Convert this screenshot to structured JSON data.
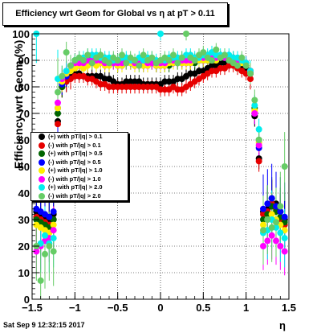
{
  "title": "Efficiency wrt Geom for Global vs   η at pT > 0.11",
  "footer": "Sat Sep  9 12:32:15 2017",
  "chart_data": {
    "type": "scatter",
    "title": "Efficiency wrt Geom for Global vs   η at pT > 0.11",
    "xlabel": "η",
    "ylabel": "Efficiency wrt Geom (%)",
    "xlim": [
      -1.5,
      1.5
    ],
    "ylim": [
      0,
      100
    ],
    "x_ticks": [
      "−1.5",
      "−1",
      "−0.5",
      "0",
      "0.5",
      "1",
      "1.5"
    ],
    "y_ticks": [
      "0",
      "10",
      "20",
      "30",
      "40",
      "50",
      "60",
      "70",
      "80",
      "90",
      "100"
    ],
    "grid": true,
    "legend_position": "left-center",
    "series": [
      {
        "name": "(+) with pT/|q| > 0.1",
        "color": "#000000",
        "x": [
          -1.45,
          -1.4,
          -1.35,
          -1.3,
          -1.25,
          -1.2,
          -1.15,
          -1.1,
          -1.05,
          -1.0,
          -0.95,
          -0.9,
          -0.85,
          -0.8,
          -0.75,
          -0.7,
          -0.65,
          -0.6,
          -0.55,
          -0.5,
          -0.45,
          -0.4,
          -0.35,
          -0.3,
          -0.25,
          -0.2,
          -0.15,
          -0.1,
          -0.05,
          0.0,
          0.05,
          0.1,
          0.15,
          0.2,
          0.25,
          0.3,
          0.35,
          0.4,
          0.45,
          0.5,
          0.55,
          0.6,
          0.65,
          0.7,
          0.75,
          0.8,
          0.85,
          0.9,
          0.95,
          1.0,
          1.05,
          1.1,
          1.15,
          1.2,
          1.25,
          1.3,
          1.35,
          1.4,
          1.45
        ],
        "y": [
          33,
          32,
          31,
          30,
          32,
          67,
          80,
          82,
          84,
          85,
          85,
          84,
          84,
          84,
          84,
          84,
          83,
          83,
          82,
          81,
          81,
          82,
          82,
          82,
          82,
          81,
          81,
          81,
          81,
          81,
          82,
          82,
          82,
          83,
          83,
          84,
          85,
          85,
          86,
          86,
          87,
          88,
          88,
          89,
          89,
          90,
          89,
          89,
          88,
          87,
          85,
          69,
          53,
          33,
          34,
          38,
          36,
          33,
          30
        ]
      },
      {
        "name": "(-) with pT/|q| > 0.1",
        "color": "#e60000",
        "x": [
          -1.45,
          -1.4,
          -1.35,
          -1.3,
          -1.25,
          -1.2,
          -1.15,
          -1.1,
          -1.05,
          -1.0,
          -0.95,
          -0.9,
          -0.85,
          -0.8,
          -0.75,
          -0.7,
          -0.65,
          -0.6,
          -0.55,
          -0.5,
          -0.45,
          -0.4,
          -0.35,
          -0.3,
          -0.25,
          -0.2,
          -0.15,
          -0.1,
          -0.05,
          0.0,
          0.05,
          0.1,
          0.15,
          0.2,
          0.25,
          0.3,
          0.35,
          0.4,
          0.45,
          0.5,
          0.55,
          0.6,
          0.65,
          0.7,
          0.75,
          0.8,
          0.85,
          0.9,
          0.95,
          1.0,
          1.05,
          1.1,
          1.15,
          1.2,
          1.25,
          1.3,
          1.35,
          1.4,
          1.45
        ],
        "y": [
          31,
          30,
          29,
          28,
          30,
          66,
          80,
          82,
          83,
          84,
          84,
          84,
          83,
          83,
          82,
          81,
          81,
          80,
          80,
          80,
          80,
          80,
          80,
          80,
          80,
          80,
          80,
          80,
          80,
          79,
          79,
          79,
          80,
          79,
          79,
          80,
          81,
          82,
          83,
          84,
          85,
          86,
          86,
          87,
          87,
          88,
          88,
          87,
          86,
          85,
          83,
          70,
          52,
          32,
          33,
          36,
          34,
          30,
          28
        ]
      },
      {
        "name": "(+) with pT/|q| > 0.5",
        "color": "#006400",
        "x": [
          -1.45,
          -1.4,
          -1.35,
          -1.3,
          -1.25,
          -1.2,
          -1.15,
          -1.1,
          -1.05,
          -1.0,
          -0.95,
          -0.9,
          -0.85,
          -0.8,
          -0.75,
          -0.7,
          -0.65,
          -0.6,
          -0.55,
          -0.5,
          -0.45,
          -0.4,
          -0.35,
          -0.3,
          -0.25,
          -0.2,
          -0.15,
          -0.1,
          -0.05,
          0.0,
          0.05,
          0.1,
          0.15,
          0.2,
          0.25,
          0.3,
          0.35,
          0.4,
          0.45,
          0.5,
          0.55,
          0.6,
          0.65,
          0.7,
          0.75,
          0.8,
          0.85,
          0.9,
          0.95,
          1.0,
          1.05,
          1.1,
          1.15,
          1.2,
          1.25,
          1.3,
          1.35,
          1.4,
          1.45
        ],
        "y": [
          30,
          29,
          28,
          27,
          30,
          70,
          80,
          84,
          86,
          88,
          88,
          89,
          89,
          89,
          89,
          90,
          89,
          89,
          89,
          88,
          88,
          89,
          89,
          88,
          89,
          89,
          89,
          89,
          88,
          88,
          88,
          88,
          89,
          89,
          89,
          89,
          89,
          89,
          90,
          90,
          90,
          90,
          91,
          91,
          91,
          91,
          91,
          90,
          89,
          88,
          86,
          72,
          60,
          30,
          32,
          35,
          33,
          31,
          29
        ]
      },
      {
        "name": "(-) with pT/|q| > 0.5",
        "color": "#0000ff",
        "x": [
          -1.45,
          -1.4,
          -1.35,
          -1.3,
          -1.25,
          -1.2,
          -1.15,
          -1.1,
          -1.05,
          -1.0,
          -0.95,
          -0.9,
          -0.85,
          -0.8,
          -0.75,
          -0.7,
          -0.65,
          -0.6,
          -0.55,
          -0.5,
          -0.45,
          -0.4,
          -0.35,
          -0.3,
          -0.25,
          -0.2,
          -0.15,
          -0.1,
          -0.05,
          0.0,
          0.05,
          0.1,
          0.15,
          0.2,
          0.25,
          0.3,
          0.35,
          0.4,
          0.45,
          0.5,
          0.55,
          0.6,
          0.65,
          0.7,
          0.75,
          0.8,
          0.85,
          0.9,
          0.95,
          1.0,
          1.05,
          1.1,
          1.15,
          1.2,
          1.25,
          1.3,
          1.35,
          1.4,
          1.45
        ],
        "y": [
          34,
          33,
          32,
          31,
          33,
          72,
          81,
          84,
          86,
          88,
          89,
          90,
          90,
          91,
          91,
          91,
          90,
          90,
          90,
          89,
          89,
          89,
          89,
          89,
          89,
          88,
          88,
          89,
          88,
          88,
          89,
          89,
          89,
          89,
          90,
          90,
          90,
          90,
          90,
          90,
          90,
          91,
          91,
          91,
          91,
          90,
          90,
          90,
          89,
          88,
          86,
          70,
          57,
          34,
          36,
          38,
          35,
          33,
          31
        ]
      },
      {
        "name": "(+) with pT/|q| > 1.0",
        "color": "#ffee00",
        "x": [
          -1.45,
          -1.4,
          -1.35,
          -1.3,
          -1.25,
          -1.2,
          -1.15,
          -1.1,
          -1.05,
          -1.0,
          -0.95,
          -0.9,
          -0.85,
          -0.8,
          -0.75,
          -0.7,
          -0.65,
          -0.6,
          -0.55,
          -0.5,
          -0.45,
          -0.4,
          -0.35,
          -0.3,
          -0.25,
          -0.2,
          -0.15,
          -0.1,
          -0.05,
          0.0,
          0.05,
          0.1,
          0.15,
          0.2,
          0.25,
          0.3,
          0.35,
          0.4,
          0.45,
          0.5,
          0.55,
          0.6,
          0.65,
          0.7,
          0.75,
          0.8,
          0.85,
          0.9,
          0.95,
          1.0,
          1.05,
          1.1,
          1.15,
          1.2,
          1.25,
          1.3,
          1.35,
          1.4,
          1.45
        ],
        "y": [
          28,
          27,
          26,
          25,
          28,
          72,
          82,
          85,
          86,
          87,
          88,
          87,
          88,
          89,
          88,
          89,
          88,
          88,
          89,
          88,
          88,
          89,
          89,
          88,
          88,
          88,
          88,
          89,
          88,
          88,
          88,
          89,
          89,
          89,
          89,
          89,
          89,
          90,
          90,
          90,
          90,
          90,
          90,
          91,
          91,
          91,
          90,
          90,
          89,
          88,
          86,
          71,
          59,
          28,
          30,
          32,
          30,
          28,
          26
        ]
      },
      {
        "name": "(-) with pT/|q| > 1.0",
        "color": "#ff00ff",
        "x": [
          -1.45,
          -1.4,
          -1.35,
          -1.3,
          -1.25,
          -1.2,
          -1.15,
          -1.1,
          -1.05,
          -1.0,
          -0.95,
          -0.9,
          -0.85,
          -0.8,
          -0.75,
          -0.7,
          -0.65,
          -0.6,
          -0.55,
          -0.5,
          -0.45,
          -0.4,
          -0.35,
          -0.3,
          -0.25,
          -0.2,
          -0.15,
          -0.1,
          -0.05,
          0.0,
          0.05,
          0.1,
          0.15,
          0.2,
          0.25,
          0.3,
          0.35,
          0.4,
          0.45,
          0.5,
          0.55,
          0.6,
          0.65,
          0.7,
          0.75,
          0.8,
          0.85,
          0.9,
          0.95,
          1.0,
          1.05,
          1.1,
          1.15,
          1.2,
          1.25,
          1.3,
          1.35,
          1.4,
          1.45
        ],
        "y": [
          18,
          20,
          22,
          23,
          26,
          74,
          83,
          86,
          88,
          89,
          89,
          89,
          90,
          90,
          90,
          90,
          89,
          89,
          89,
          89,
          89,
          90,
          90,
          89,
          89,
          90,
          89,
          89,
          89,
          89,
          89,
          90,
          90,
          90,
          90,
          90,
          90,
          90,
          91,
          91,
          91,
          91,
          91,
          91,
          91,
          91,
          90,
          90,
          90,
          89,
          86,
          70,
          58,
          20,
          22,
          24,
          22,
          20,
          18
        ]
      },
      {
        "name": "(+) with pT/|q| > 2.0",
        "color": "#00eeee",
        "x": [
          -1.45,
          -1.4,
          -1.35,
          -1.3,
          -1.25,
          -1.2,
          -1.15,
          -1.1,
          -1.05,
          -1.0,
          -0.95,
          -0.9,
          -0.85,
          -0.8,
          -0.75,
          -0.7,
          -0.65,
          -0.6,
          -0.55,
          -0.5,
          -0.45,
          -0.4,
          -0.35,
          -0.3,
          -0.25,
          -0.2,
          -0.15,
          -0.1,
          -0.05,
          0.0,
          0.05,
          0.1,
          0.15,
          0.2,
          0.25,
          0.3,
          0.35,
          0.4,
          0.45,
          0.5,
          0.55,
          0.6,
          0.65,
          0.7,
          0.75,
          0.8,
          0.85,
          0.9,
          0.95,
          1.0,
          1.05,
          1.1,
          1.15,
          1.2,
          1.25,
          1.3,
          1.35,
          1.4,
          1.45
        ],
        "y": [
          100,
          21,
          24,
          21,
          23,
          83,
          84,
          86,
          88,
          90,
          91,
          91,
          92,
          92,
          92,
          91,
          91,
          91,
          90,
          90,
          91,
          91,
          90,
          90,
          91,
          90,
          91,
          91,
          90,
          100,
          90,
          91,
          91,
          91,
          91,
          92,
          92,
          91,
          91,
          92,
          92,
          93,
          92,
          92,
          92,
          92,
          91,
          91,
          90,
          89,
          86,
          73,
          64,
          25,
          26,
          30,
          27,
          25,
          23
        ]
      },
      {
        "name": "(-) with pT/|q| > 2.0",
        "color": "#66cc66",
        "x": [
          -1.45,
          -1.4,
          -1.35,
          -1.3,
          -1.25,
          -1.2,
          -1.15,
          -1.1,
          -1.05,
          -1.0,
          -0.95,
          -0.9,
          -0.85,
          -0.8,
          -0.75,
          -0.7,
          -0.65,
          -0.6,
          -0.55,
          -0.5,
          -0.45,
          -0.4,
          -0.35,
          -0.3,
          -0.25,
          -0.2,
          -0.15,
          -0.1,
          -0.05,
          0.0,
          0.05,
          0.1,
          0.15,
          0.2,
          0.25,
          0.3,
          0.35,
          0.4,
          0.45,
          0.5,
          0.55,
          0.6,
          0.65,
          0.7,
          0.75,
          0.8,
          0.85,
          0.9,
          0.95,
          1.0,
          1.05,
          1.1,
          1.15,
          1.2,
          1.25,
          1.3,
          1.35,
          1.4,
          1.45
        ],
        "y": [
          20,
          7,
          17,
          20,
          18,
          78,
          84,
          93,
          88,
          90,
          91,
          90,
          92,
          89,
          91,
          92,
          90,
          89,
          91,
          90,
          92,
          89,
          91,
          90,
          88,
          92,
          90,
          91,
          89,
          90,
          91,
          90,
          92,
          89,
          91,
          100,
          91,
          90,
          92,
          93,
          91,
          90,
          94,
          91,
          92,
          90,
          89,
          88,
          91,
          88,
          85,
          75,
          60,
          26,
          30,
          27,
          29,
          35,
          50
        ]
      }
    ]
  }
}
